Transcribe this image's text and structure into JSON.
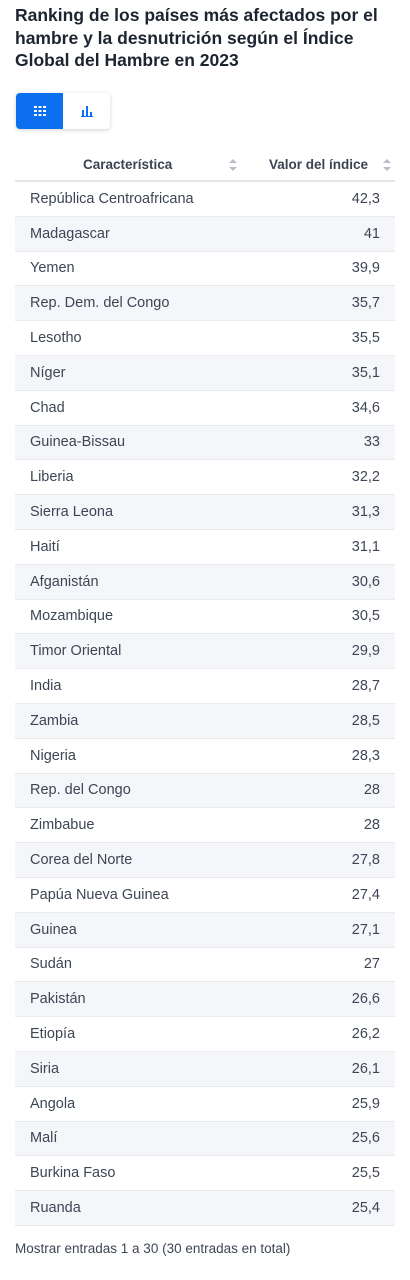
{
  "header": {
    "title": "Ranking de los países más afectados por el hambre y la desnutrición según el Índice Global del Hambre en 2023"
  },
  "view_toggle": {
    "table_icon": "grid-icon",
    "chart_icon": "bar-chart-icon",
    "active": "table"
  },
  "table": {
    "columns": [
      "Característica",
      "Valor del índice"
    ]
  },
  "chart_data": {
    "type": "table",
    "title": "Ranking de los países más afectados por el hambre y la desnutrición según el Índice Global del Hambre en 2023",
    "columns": [
      "Característica",
      "Valor del índice"
    ],
    "rows": [
      {
        "label": "República Centroafricana",
        "value": "42,3"
      },
      {
        "label": "Madagascar",
        "value": "41"
      },
      {
        "label": "Yemen",
        "value": "39,9"
      },
      {
        "label": "Rep. Dem. del Congo",
        "value": "35,7"
      },
      {
        "label": "Lesotho",
        "value": "35,5"
      },
      {
        "label": "Níger",
        "value": "35,1"
      },
      {
        "label": "Chad",
        "value": "34,6"
      },
      {
        "label": "Guinea-Bissau",
        "value": "33"
      },
      {
        "label": "Liberia",
        "value": "32,2"
      },
      {
        "label": "Sierra Leona",
        "value": "31,3"
      },
      {
        "label": "Haití",
        "value": "31,1"
      },
      {
        "label": "Afganistán",
        "value": "30,6"
      },
      {
        "label": "Mozambique",
        "value": "30,5"
      },
      {
        "label": "Timor Oriental",
        "value": "29,9"
      },
      {
        "label": "India",
        "value": "28,7"
      },
      {
        "label": "Zambia",
        "value": "28,5"
      },
      {
        "label": "Nigeria",
        "value": "28,3"
      },
      {
        "label": "Rep. del Congo",
        "value": "28"
      },
      {
        "label": "Zimbabue",
        "value": "28"
      },
      {
        "label": "Corea del Norte",
        "value": "27,8"
      },
      {
        "label": "Papúa Nueva Guinea",
        "value": "27,4"
      },
      {
        "label": "Guinea",
        "value": "27,1"
      },
      {
        "label": "Sudán",
        "value": "27"
      },
      {
        "label": "Pakistán",
        "value": "26,6"
      },
      {
        "label": "Etiopía",
        "value": "26,2"
      },
      {
        "label": "Siria",
        "value": "26,1"
      },
      {
        "label": "Angola",
        "value": "25,9"
      },
      {
        "label": "Malí",
        "value": "25,6"
      },
      {
        "label": "Burkina Faso",
        "value": "25,5"
      },
      {
        "label": "Ruanda",
        "value": "25,4"
      }
    ]
  },
  "footer": {
    "entries_text": "Mostrar entradas 1 a 30 (30 entradas en total)"
  },
  "colors": {
    "accent": "#0b6ff0",
    "row_alt": "#f4f6f9",
    "title": "#1c2430"
  }
}
